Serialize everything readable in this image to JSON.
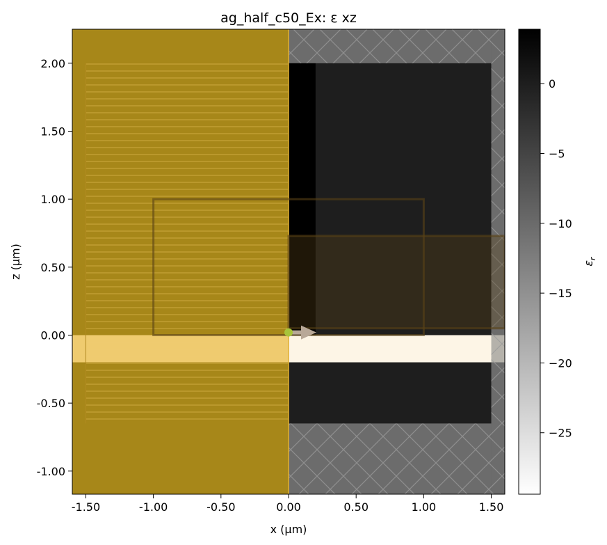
{
  "chart_data": {
    "type": "heatmap",
    "title": "ag_half_c50_Ex: ε xz",
    "xlabel": "x (µm)",
    "ylabel": "z (µm)",
    "xlim": [
      -1.6,
      1.6
    ],
    "ylim": [
      -1.17,
      2.25
    ],
    "xticks": [
      -1.5,
      -1.0,
      -0.5,
      0.0,
      0.5,
      1.0,
      1.5
    ],
    "xtick_labels": [
      "-1.50",
      "-1.00",
      "-0.50",
      "0.00",
      "0.50",
      "1.00",
      "1.50"
    ],
    "yticks": [
      -1.0,
      -0.5,
      0.0,
      0.5,
      1.0,
      1.5,
      2.0
    ],
    "ytick_labels": [
      "-1.00",
      "-0.50",
      "0.00",
      "0.50",
      "1.00",
      "1.50",
      "2.00"
    ],
    "colorbar": {
      "label": "εr",
      "label_main": "ε",
      "label_sub": "r",
      "range": [
        -29.4,
        3.9
      ],
      "ticks": [
        0,
        -5,
        -10,
        -15,
        -20,
        -25
      ],
      "tick_labels": [
        "0",
        "−5",
        "−10",
        "−15",
        "−20",
        "−25"
      ],
      "colormap": "gray_r"
    },
    "regions": [
      {
        "name": "background",
        "x": [
          -1.6,
          1.6
        ],
        "z": [
          -1.17,
          2.25
        ],
        "eps": -8.0
      },
      {
        "name": "cladding-dark",
        "x": [
          0.0,
          1.5
        ],
        "z": [
          -0.65,
          2.0
        ],
        "eps": 0.0
      },
      {
        "name": "silver-core",
        "x": [
          -1.6,
          1.6
        ],
        "z": [
          -0.2,
          0.0
        ],
        "eps": -29.0
      },
      {
        "name": "upper-bright-strip",
        "x": [
          0.0,
          0.2
        ],
        "z": [
          0.0,
          2.0
        ],
        "eps": 3.9
      }
    ],
    "overlays": {
      "pml_hatch": [
        {
          "x": [
            0.0,
            1.5
          ],
          "z": [
            2.0,
            2.25
          ]
        },
        {
          "x": [
            0.0,
            1.5
          ],
          "z": [
            -1.17,
            -0.65
          ]
        },
        {
          "x": [
            1.5,
            1.6
          ],
          "z": [
            -1.17,
            2.25
          ]
        }
      ],
      "symmetry_region": {
        "x": [
          -1.6,
          0.0
        ],
        "z": [
          -1.17,
          2.25
        ],
        "color": "#c59800"
      },
      "source": {
        "x": 0.0,
        "z": 0.02,
        "direction": "+x",
        "color": "#b8a898"
      },
      "monitor_boxes": [
        {
          "x": [
            -1.0,
            1.0
          ],
          "z": [
            0.0,
            1.0
          ]
        },
        {
          "x": [
            0.0,
            1.6
          ],
          "z": [
            0.05,
            0.73
          ]
        }
      ]
    },
    "colors": {
      "symmetry_fill": "#c59800",
      "core_fill": "#fdf5e6",
      "source_dot": "#a8c43a",
      "monitor_line": "#5a4216"
    }
  }
}
